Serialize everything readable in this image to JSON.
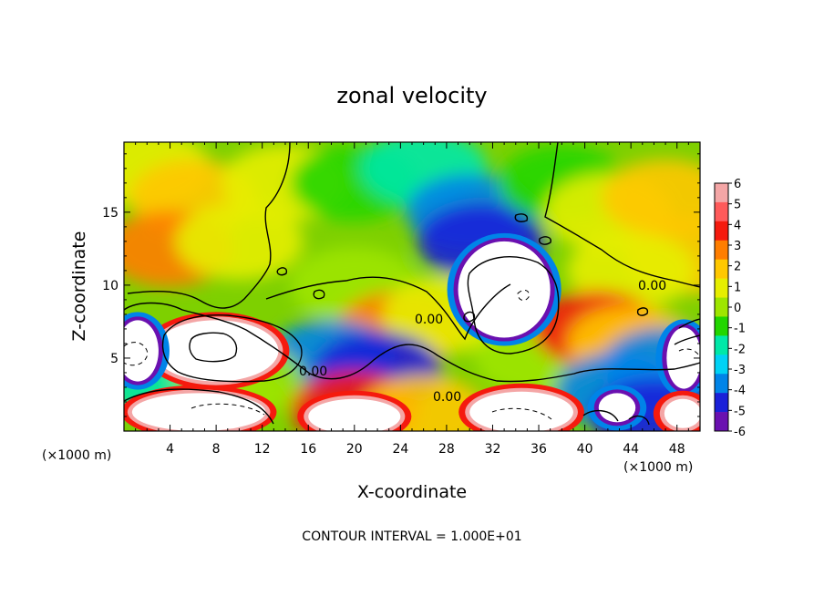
{
  "chart_data": {
    "type": "heatmap",
    "title": "zonal velocity",
    "xlabel": "X-coordinate",
    "ylabel": "Z-coordinate",
    "x_unit_label": "(×1000 m)",
    "x_unit_label_right": "(×1000 m)",
    "xlim": [
      0,
      50
    ],
    "ylim": [
      0,
      19.8
    ],
    "x_ticks": [
      4,
      8,
      12,
      16,
      20,
      24,
      28,
      32,
      36,
      40,
      44,
      48
    ],
    "y_ticks": [
      5,
      10,
      15
    ],
    "footer": "CONTOUR INTERVAL = 1.000E+01",
    "contour_labels": [
      "0.00",
      "0.00",
      "0.00",
      "0.00"
    ],
    "colorbar": {
      "ticks": [
        6,
        5,
        4,
        3,
        2,
        1,
        0,
        -1,
        -2,
        -3,
        -4,
        -5,
        -6
      ],
      "colors": [
        "#f4a6a6",
        "#ff5a5a",
        "#f51a0e",
        "#ff7e00",
        "#ffc800",
        "#e6ee00",
        "#9ee600",
        "#22d600",
        "#00e8a8",
        "#00d2f5",
        "#0084e8",
        "#1a20d8",
        "#6a10b0"
      ]
    },
    "regions": [
      {
        "x": 2,
        "z": 18,
        "v": 1.2
      },
      {
        "x": 6,
        "z": 16,
        "v": 1.8
      },
      {
        "x": 4,
        "z": 12.5,
        "v": 3.5
      },
      {
        "x": 10,
        "z": 13,
        "v": 1.5
      },
      {
        "x": 14,
        "z": 17,
        "v": 0.8
      },
      {
        "x": 20,
        "z": 17,
        "v": -0.8
      },
      {
        "x": 26,
        "z": 18,
        "v": -2.2
      },
      {
        "x": 30,
        "z": 15,
        "v": -3.6
      },
      {
        "x": 31,
        "z": 13,
        "v": -5.2
      },
      {
        "x": 38,
        "z": 17,
        "v": -1.3
      },
      {
        "x": 42,
        "z": 15,
        "v": 0.6
      },
      {
        "x": 47,
        "z": 16,
        "v": 2.0
      },
      {
        "x": 49,
        "z": 12,
        "v": 2.2
      },
      {
        "x": 44,
        "z": 11,
        "v": 1.0
      },
      {
        "x": 20,
        "z": 10,
        "v": 0.5
      },
      {
        "x": 24,
        "z": 7,
        "v": 3.2
      },
      {
        "x": 28,
        "z": 8,
        "v": 0.8
      },
      {
        "x": 18,
        "z": 5,
        "v": -4.2
      },
      {
        "x": 22,
        "z": 4.2,
        "v": -4.8
      },
      {
        "x": 36,
        "z": 5,
        "v": 0.5
      },
      {
        "x": 41,
        "z": 7,
        "v": 4.0
      },
      {
        "x": 44,
        "z": 6,
        "v": 2.5
      },
      {
        "x": 4,
        "z": 3.3,
        "v": -2.0
      },
      {
        "x": 10,
        "z": 3.5,
        "v": 0.5
      },
      {
        "x": 20,
        "z": 1.5,
        "v": 4.0
      },
      {
        "x": 26,
        "z": 1.2,
        "v": 2.5
      },
      {
        "x": 43,
        "z": 2.8,
        "v": -4.2
      },
      {
        "x": 47,
        "z": 4.5,
        "v": -3.5
      },
      {
        "x": 46,
        "z": 1.0,
        "v": -4.5
      }
    ],
    "saturated_regions": [
      {
        "x": 8,
        "z": 5.5,
        "rx": 5.4,
        "rz": 2.1,
        "sign": 1
      },
      {
        "x": 1.2,
        "z": 5.5,
        "rx": 1.8,
        "rz": 2.1,
        "sign": -1
      },
      {
        "x": 33,
        "z": 9.7,
        "rx": 4.0,
        "rz": 3.3,
        "sign": -1
      },
      {
        "x": 6.5,
        "z": 1.3,
        "rx": 5.8,
        "rz": 1.3,
        "sign": 1
      },
      {
        "x": 20,
        "z": 1.0,
        "rx": 4.0,
        "rz": 1.2,
        "sign": 1
      },
      {
        "x": 34.5,
        "z": 1.3,
        "rx": 4.5,
        "rz": 1.4,
        "sign": 1
      },
      {
        "x": 42.8,
        "z": 1.6,
        "rx": 1.6,
        "rz": 1.0,
        "sign": -1
      },
      {
        "x": 48.6,
        "z": 5.0,
        "rx": 1.5,
        "rz": 2.1,
        "sign": -1
      },
      {
        "x": 48.5,
        "z": 1.2,
        "rx": 1.6,
        "rz": 1.0,
        "sign": 1
      }
    ]
  }
}
